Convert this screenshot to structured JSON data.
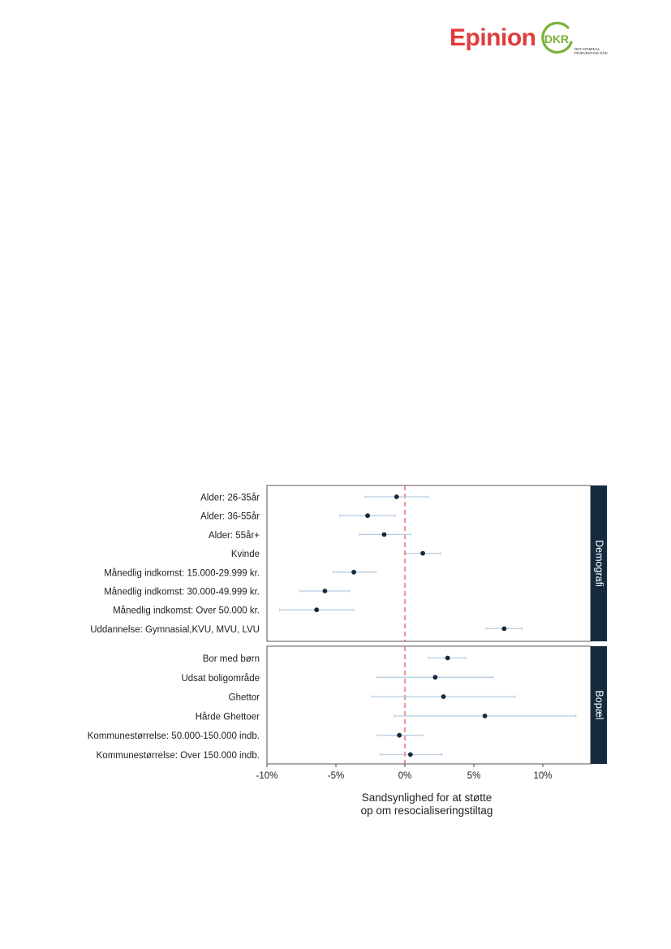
{
  "logos": {
    "epinion": "Epinion",
    "dkr": "DKR",
    "dkr_sub_line1": "DET KRIMINAL",
    "dkr_sub_line2": "PRÆVENTIVE RÅD",
    "colors": {
      "epinion": "#e03c3c",
      "dkr": "#7ab33a"
    }
  },
  "chart_data": {
    "type": "scatter",
    "subtype": "coefficient-plot-with-error-bars",
    "xlabel": "Sandsynlighed for at støtte op om resocialiseringstiltag",
    "xlabel_lines": [
      "Sandsynlighed for at støtte",
      "op om resocialiseringstiltag"
    ],
    "xlim": [
      -10,
      14
    ],
    "x_ticks": [
      -10,
      -5,
      0,
      5,
      10
    ],
    "x_tick_labels": [
      "-10%",
      "-5%",
      "0%",
      "5%",
      "10%"
    ],
    "reference_line": {
      "x": 0,
      "style": "dashed",
      "color": "#e05a5a"
    },
    "colors": {
      "point": "#152a3e",
      "error_bar": "#b9cde0",
      "strip": "#152a3e",
      "frame": "#555555"
    },
    "panels": [
      {
        "name": "Demografi",
        "items": [
          {
            "label": "Alder: 26-35år",
            "value": -0.6,
            "low": -2.9,
            "high": 1.7
          },
          {
            "label": "Alder: 36-55år",
            "value": -2.7,
            "low": -4.7,
            "high": -0.7
          },
          {
            "label": "Alder: 55år+",
            "value": -1.5,
            "low": -3.3,
            "high": 0.4
          },
          {
            "label": "Kvinde",
            "value": 1.3,
            "low": 0.1,
            "high": 2.6
          },
          {
            "label": "Månedlig indkomst: 15.000-29.999 kr.",
            "value": -3.7,
            "low": -5.2,
            "high": -2.1
          },
          {
            "label": "Månedlig indkomst: 30.000-49.999 kr.",
            "value": -5.8,
            "low": -7.6,
            "high": -4.0
          },
          {
            "label": "Månedlig indkomst: Over 50.000 kr.",
            "value": -6.4,
            "low": -9.1,
            "high": -3.7
          },
          {
            "label": "Uddannelse: Gymnasial,KVU, MVU, LVU",
            "value": 7.2,
            "low": 5.9,
            "high": 8.5
          }
        ]
      },
      {
        "name": "Bopæl",
        "items": [
          {
            "label": "Bor med børn",
            "value": 3.1,
            "low": 1.7,
            "high": 4.4
          },
          {
            "label": "Udsat boligområde",
            "value": 2.2,
            "low": -2.0,
            "high": 6.4
          },
          {
            "label": "Ghettor",
            "value": 2.8,
            "low": -2.4,
            "high": 8.0
          },
          {
            "label": "Hårde Ghettoer",
            "value": 5.8,
            "low": -0.8,
            "high": 12.4
          },
          {
            "label": "Kommunestørrelse: 50.000-150.000 indb.",
            "value": -0.4,
            "low": -2.0,
            "high": 1.3
          },
          {
            "label": "Kommunestørrelse: Over 150.000 indb.",
            "value": 0.4,
            "low": -1.8,
            "high": 2.7
          }
        ]
      }
    ]
  }
}
